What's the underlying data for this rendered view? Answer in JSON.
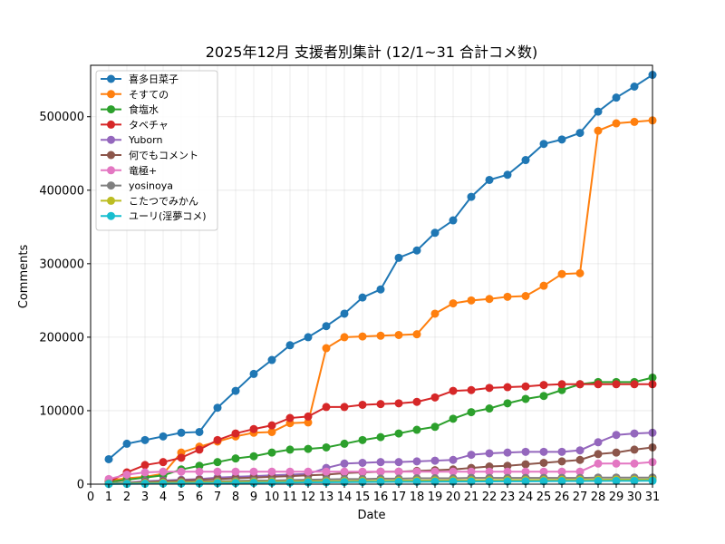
{
  "chart_data": {
    "type": "line",
    "title": "2025年12月 支援者別集計 (12/1~31 合計コメ数)",
    "xlabel": "Date",
    "ylabel": "Comments",
    "xlim": [
      0,
      31
    ],
    "ylim": [
      0,
      570000
    ],
    "xticks": [
      0,
      1,
      2,
      3,
      4,
      5,
      6,
      7,
      8,
      9,
      10,
      11,
      12,
      13,
      14,
      15,
      16,
      17,
      18,
      19,
      20,
      21,
      22,
      23,
      24,
      25,
      26,
      27,
      28,
      29,
      30,
      31
    ],
    "yticks": [
      0,
      100000,
      200000,
      300000,
      400000,
      500000
    ],
    "grid": true,
    "legend_position": "top-left",
    "x": [
      1,
      2,
      3,
      4,
      5,
      6,
      7,
      8,
      9,
      10,
      11,
      12,
      13,
      14,
      15,
      16,
      17,
      18,
      19,
      20,
      21,
      22,
      23,
      24,
      25,
      26,
      27,
      28,
      29,
      30,
      31
    ],
    "series": [
      {
        "name": "喜多日菜子",
        "color": "#1f77b4",
        "values": [
          34000,
          55000,
          60000,
          65000,
          70000,
          71000,
          104000,
          127000,
          150000,
          169000,
          189000,
          200000,
          215000,
          232000,
          254000,
          265000,
          308000,
          318000,
          342000,
          359000,
          391000,
          414000,
          421000,
          441000,
          463000,
          469000,
          478000,
          507000,
          526000,
          541000,
          557000
        ]
      },
      {
        "name": "そすての",
        "color": "#ff7f0e",
        "values": [
          5000,
          8000,
          10000,
          14000,
          43000,
          51000,
          58000,
          65000,
          70000,
          71000,
          83000,
          84000,
          185000,
          200000,
          201000,
          202000,
          203000,
          204000,
          232000,
          246000,
          250000,
          252000,
          255000,
          256000,
          270000,
          286000,
          287000,
          481000,
          491000,
          493000,
          495000
        ]
      },
      {
        "name": "食塩水",
        "color": "#2ca02c",
        "values": [
          3000,
          6000,
          9000,
          12000,
          20000,
          25000,
          30000,
          35000,
          38000,
          43000,
          47000,
          48000,
          50000,
          55000,
          60000,
          64000,
          69000,
          74000,
          78000,
          89000,
          98000,
          103000,
          110000,
          116000,
          120000,
          128000,
          136000,
          139000,
          139000,
          139000,
          145000
        ]
      },
      {
        "name": "タベチャ",
        "color": "#d62728",
        "values": [
          3000,
          16000,
          26000,
          30000,
          36000,
          47000,
          60000,
          69000,
          75000,
          80000,
          90000,
          92000,
          105000,
          105000,
          108000,
          109000,
          110000,
          112000,
          118000,
          127000,
          128000,
          131000,
          132000,
          133000,
          135000,
          136000,
          136000,
          136000,
          136000,
          136000,
          136000
        ]
      },
      {
        "name": "Yuborn",
        "color": "#9467bd",
        "values": [
          1000,
          2000,
          4000,
          5000,
          6000,
          7000,
          9000,
          10000,
          11000,
          12000,
          13000,
          14000,
          22000,
          28000,
          29000,
          30000,
          30000,
          31000,
          32000,
          33000,
          40000,
          42000,
          43000,
          44000,
          44000,
          44000,
          46000,
          57000,
          67000,
          69000,
          70000
        ]
      },
      {
        "name": "何でもコメント",
        "color": "#8c564b",
        "values": [
          1000,
          2000,
          3000,
          4000,
          5000,
          6000,
          7000,
          8000,
          9000,
          10000,
          11000,
          12000,
          13000,
          15000,
          16000,
          17000,
          17000,
          18000,
          19000,
          20000,
          22000,
          24000,
          25000,
          27000,
          29000,
          31000,
          33000,
          41000,
          43000,
          47000,
          50000
        ]
      },
      {
        "name": "竜極+",
        "color": "#e377c2",
        "values": [
          7000,
          13000,
          16000,
          17000,
          17000,
          17000,
          17000,
          17000,
          17000,
          17000,
          17000,
          17000,
          17000,
          17000,
          17000,
          17000,
          17000,
          17000,
          17000,
          17000,
          17000,
          17000,
          17000,
          17000,
          17000,
          17000,
          17000,
          28000,
          28000,
          28000,
          30000
        ]
      },
      {
        "name": "yosinoya",
        "color": "#7f7f7f",
        "values": [
          1000,
          1500,
          2000,
          2500,
          3000,
          3500,
          4000,
          4500,
          5000,
          5000,
          5500,
          6000,
          6500,
          7000,
          7000,
          7500,
          7500,
          8000,
          8000,
          8000,
          8500,
          8500,
          8500,
          8500,
          8500,
          8500,
          8500,
          9000,
          9000,
          9000,
          9000
        ]
      },
      {
        "name": "こたつでみかん",
        "color": "#bcbd22",
        "values": [
          500,
          1000,
          1500,
          2000,
          2200,
          2500,
          2700,
          3000,
          3200,
          3400,
          3600,
          3800,
          4000,
          4200,
          4400,
          4600,
          4800,
          5000,
          5100,
          5200,
          5300,
          5400,
          5500,
          5600,
          5700,
          5800,
          5900,
          6000,
          6100,
          6200,
          6300
        ]
      },
      {
        "name": "ユーリ(淫夢コメ)",
        "color": "#17becf",
        "values": [
          200,
          400,
          600,
          800,
          1000,
          1200,
          1400,
          1600,
          1800,
          2000,
          2200,
          2400,
          2600,
          2800,
          3000,
          3100,
          3200,
          3300,
          3400,
          3500,
          3600,
          3700,
          3800,
          3900,
          4000,
          4100,
          4200,
          4300,
          4400,
          4500,
          4600
        ]
      }
    ]
  }
}
